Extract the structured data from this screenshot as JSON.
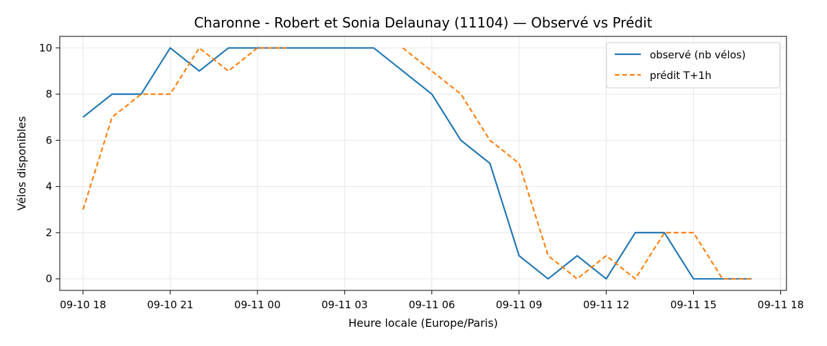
{
  "chart_data": {
    "type": "line",
    "title": "Charonne - Robert et Sonia Delaunay (11104) — Observé vs Prédit",
    "xlabel": "Heure locale (Europe/Paris)",
    "ylabel": "Vélos disponibles",
    "x_tick_labels": [
      "09-10 18",
      "09-10 21",
      "09-11 00",
      "09-11 03",
      "09-11 06",
      "09-11 09",
      "09-11 12",
      "09-11 15",
      "09-11 18"
    ],
    "x_ticks": [
      "09-10 18:00",
      "09-10 21:00",
      "09-11 00:00",
      "09-11 03:00",
      "09-11 06:00",
      "09-11 09:00",
      "09-11 12:00",
      "09-11 15:00",
      "09-11 18:00"
    ],
    "xlim": [
      "09-10 17:12",
      "09-11 18:12"
    ],
    "y_ticks": [
      0,
      2,
      4,
      6,
      8,
      10
    ],
    "ylim": [
      -0.5,
      10.5
    ],
    "grid": true,
    "legend_position": "top-right",
    "x": [
      "09-10 18:00",
      "09-10 19:00",
      "09-10 20:00",
      "09-10 21:00",
      "09-10 22:00",
      "09-10 23:00",
      "09-11 00:00",
      "09-11 01:00",
      "09-11 02:00",
      "09-11 03:00",
      "09-11 04:00",
      "09-11 05:00",
      "09-11 06:00",
      "09-11 07:00",
      "09-11 08:00",
      "09-11 09:00",
      "09-11 10:00",
      "09-11 11:00",
      "09-11 12:00",
      "09-11 13:00",
      "09-11 14:00",
      "09-11 15:00",
      "09-11 16:00",
      "09-11 17:00"
    ],
    "series": [
      {
        "name": "observé (nb vélos)",
        "color": "#1f77b4",
        "style": "solid",
        "x": [
          "09-10 18:00",
          "09-10 19:00",
          "09-10 20:00",
          "09-10 21:00",
          "09-10 22:00",
          "09-10 23:00",
          "09-11 00:00",
          "09-11 01:00",
          "09-11 02:00",
          "09-11 03:00",
          "09-11 04:00",
          "09-11 06:00",
          "09-11 07:00",
          "09-11 08:00",
          "09-11 09:00",
          "09-11 10:00",
          "09-11 11:00",
          "09-11 12:00",
          "09-11 13:00",
          "09-11 14:00",
          "09-11 15:00",
          "09-11 16:00",
          "09-11 17:00"
        ],
        "values": [
          7,
          8,
          8,
          10,
          9,
          10,
          10,
          10,
          10,
          10,
          10,
          8,
          6,
          5,
          1,
          0,
          1,
          0,
          2,
          2,
          0,
          0,
          0
        ]
      },
      {
        "name": "prédit T+1h",
        "color": "#ff7f0e",
        "style": "dashed",
        "segments": [
          {
            "x": [
              "09-10 18:00",
              "09-10 19:00",
              "09-10 20:00",
              "09-10 21:00",
              "09-10 22:00",
              "09-10 23:00",
              "09-11 00:00",
              "09-11 01:00"
            ],
            "values": [
              3,
              7,
              8,
              8,
              10,
              9,
              10,
              10
            ]
          },
          {
            "x": [
              "09-11 05:00",
              "09-11 06:00",
              "09-11 07:00",
              "09-11 08:00",
              "09-11 09:00",
              "09-11 10:00",
              "09-11 11:00",
              "09-11 12:00",
              "09-11 13:00",
              "09-11 14:00",
              "09-11 15:00",
              "09-11 16:00",
              "09-11 17:00"
            ],
            "values": [
              10,
              9,
              8,
              6,
              5,
              1,
              0,
              1,
              0,
              2,
              2,
              0,
              0
            ]
          }
        ]
      }
    ]
  }
}
